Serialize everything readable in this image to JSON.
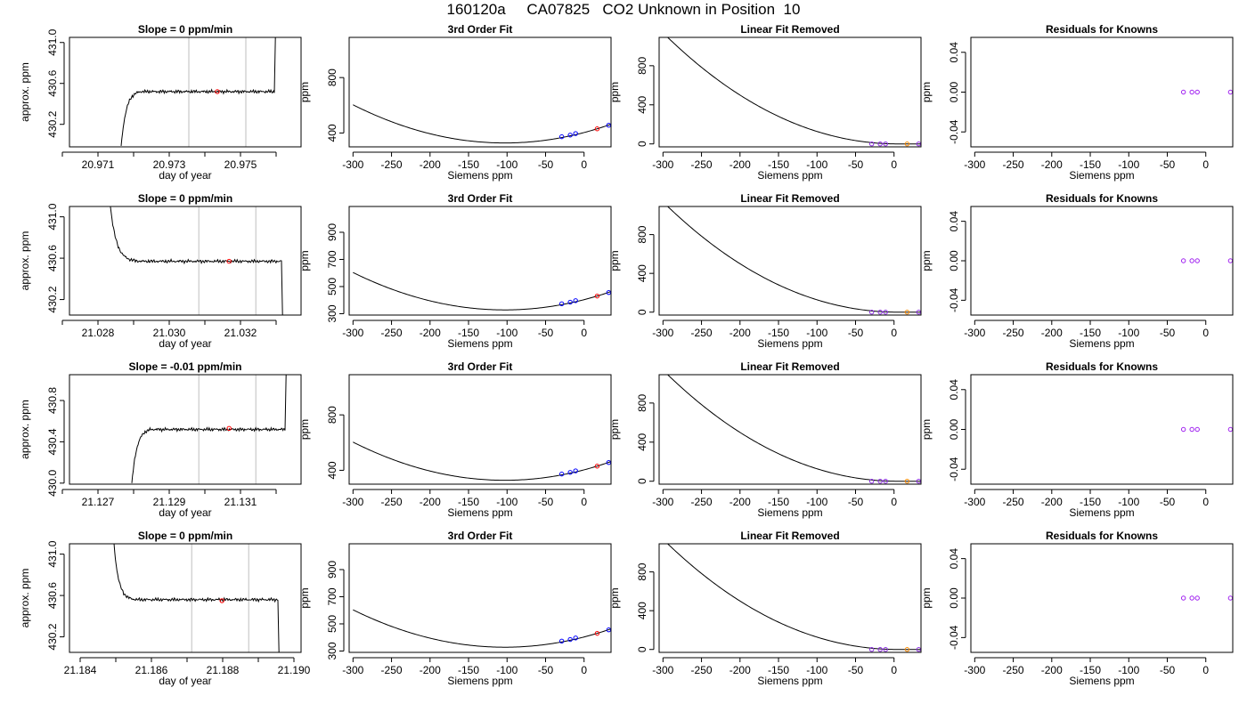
{
  "title": "160120a     CA07825   CO2 Unknown in Position  10",
  "chart_data": [
    {
      "type": "line",
      "title": "Slope =  0  ppm/min",
      "xlabel": "day of year",
      "ylabel": "approx. ppm",
      "xlim": [
        20.9702,
        20.9767
      ],
      "ylim": [
        429.98,
        431.05
      ],
      "xticks": [
        20.97,
        20.971,
        20.972,
        20.973,
        20.974,
        20.975,
        20.976
      ],
      "xtick_labels": [
        "",
        "20.971",
        "",
        "20.973",
        "",
        "20.975",
        ""
      ],
      "yticks": [
        430.2,
        430.6,
        431.0
      ],
      "ytick_labels": [
        "430.2",
        "430.6",
        "431.0"
      ],
      "vlines": [
        20.97355,
        20.97515
      ],
      "trace": {
        "x0": 20.97165,
        "x1": 20.97595,
        "start": 429.98,
        "rise_end": 20.9722,
        "plateau": 430.52,
        "jump": 20.97598,
        "end": 431.05
      },
      "highlight_point": {
        "x": 20.97435,
        "y": 430.52
      }
    },
    {
      "type": "scatter",
      "title": "3rd Order Fit",
      "xlabel": "Siemens ppm",
      "ylabel": "ppm",
      "xlim": [
        -305,
        35
      ],
      "ylim": [
        300,
        1090
      ],
      "xticks": [
        -300,
        -250,
        -200,
        -150,
        -100,
        -50,
        0
      ],
      "xtick_labels": [
        "-300",
        "-250",
        "-200",
        "-150",
        "-100",
        "-50",
        "0"
      ],
      "yticks": [
        400,
        800
      ],
      "ytick_labels": [
        "400",
        "800"
      ],
      "curve_x": [
        -300,
        35
      ],
      "knowns": [
        {
          "x": -29,
          "y": 373
        },
        {
          "x": -18,
          "y": 385
        },
        {
          "x": -11,
          "y": 396
        },
        {
          "x": 32,
          "y": 456
        }
      ],
      "unknown": {
        "x": 17,
        "y": 430
      }
    },
    {
      "type": "scatter",
      "title": "Linear Fit Removed",
      "xlabel": "Siemens ppm",
      "ylabel": "ppm",
      "xlim": [
        -305,
        35
      ],
      "ylim": [
        -30,
        1090
      ],
      "xticks": [
        -300,
        -250,
        -200,
        -150,
        -100,
        -50,
        0
      ],
      "xtick_labels": [
        "-300",
        "-250",
        "-200",
        "-150",
        "-100",
        "-50",
        "0"
      ],
      "yticks": [
        0,
        400,
        800
      ],
      "ytick_labels": [
        "0",
        "400",
        "800"
      ],
      "curve_x": [
        -300,
        35
      ],
      "knowns": [
        {
          "x": -29,
          "y": 0
        },
        {
          "x": -18,
          "y": 0
        },
        {
          "x": -11,
          "y": 0
        },
        {
          "x": 32,
          "y": 0
        }
      ],
      "unknown": {
        "x": 17,
        "y": 0
      }
    },
    {
      "type": "scatter",
      "title": "Residuals for Knowns",
      "xlabel": "Siemens ppm",
      "ylabel": "ppm",
      "xlim": [
        -305,
        35
      ],
      "ylim": [
        -0.055,
        0.055
      ],
      "xticks": [
        -300,
        -250,
        -200,
        -150,
        -100,
        -50,
        0
      ],
      "xtick_labels": [
        "-300",
        "-250",
        "-200",
        "-150",
        "-100",
        "-50",
        "0"
      ],
      "yticks": [
        -0.04,
        0.0,
        0.04
      ],
      "ytick_labels": [
        "-0.04",
        "0.00",
        "0.04"
      ],
      "knowns": [
        {
          "x": -29,
          "y": 0
        },
        {
          "x": -18,
          "y": 0
        },
        {
          "x": -11,
          "y": 0
        },
        {
          "x": 32,
          "y": 0
        }
      ]
    },
    {
      "type": "line",
      "title": "Slope =  0  ppm/min",
      "xlabel": "day of year",
      "ylabel": "approx. ppm",
      "xlim": [
        21.0272,
        21.0337
      ],
      "ylim": [
        430.05,
        431.1
      ],
      "xticks": [
        21.027,
        21.028,
        21.029,
        21.03,
        21.031,
        21.032,
        21.033
      ],
      "xtick_labels": [
        "",
        "21.028",
        "",
        "21.030",
        "",
        "21.032",
        ""
      ],
      "yticks": [
        430.2,
        430.6,
        431.0
      ],
      "ytick_labels": [
        "430.2",
        "430.6",
        "431.0"
      ],
      "vlines": [
        21.03083,
        21.03243
      ],
      "trace": {
        "x0": 21.02835,
        "x1": 21.03315,
        "start": 431.1,
        "fall_end": 21.0292,
        "plateau": 430.57,
        "drop": 21.03318,
        "end": 430.05
      },
      "highlight_point": {
        "x": 21.03168,
        "y": 430.57
      }
    },
    {
      "type": "scatter",
      "title": "3rd Order Fit",
      "xlabel": "Siemens ppm",
      "ylabel": "ppm",
      "xlim": [
        -305,
        35
      ],
      "ylim": [
        290,
        1090
      ],
      "xticks": [
        -300,
        -250,
        -200,
        -150,
        -100,
        -50,
        0
      ],
      "xtick_labels": [
        "-300",
        "-250",
        "-200",
        "-150",
        "-100",
        "-50",
        "0"
      ],
      "yticks": [
        300,
        500,
        700,
        900
      ],
      "ytick_labels": [
        "300",
        "500",
        "700",
        "900"
      ],
      "curve_x": [
        -300,
        35
      ],
      "knowns": [
        {
          "x": -29,
          "y": 373
        },
        {
          "x": -18,
          "y": 385
        },
        {
          "x": -11,
          "y": 396
        },
        {
          "x": 32,
          "y": 456
        }
      ],
      "unknown": {
        "x": 17,
        "y": 430
      }
    },
    {
      "type": "scatter",
      "title": "Linear Fit Removed",
      "xlabel": "Siemens ppm",
      "ylabel": "ppm",
      "xlim": [
        -305,
        35
      ],
      "ylim": [
        -30,
        1090
      ],
      "xticks": [
        -300,
        -250,
        -200,
        -150,
        -100,
        -50,
        0
      ],
      "xtick_labels": [
        "-300",
        "-250",
        "-200",
        "-150",
        "-100",
        "-50",
        "0"
      ],
      "yticks": [
        0,
        400,
        800
      ],
      "ytick_labels": [
        "0",
        "400",
        "800"
      ],
      "curve_x": [
        -300,
        35
      ],
      "knowns": [
        {
          "x": -29,
          "y": 0
        },
        {
          "x": -18,
          "y": 0
        },
        {
          "x": -11,
          "y": 0
        },
        {
          "x": 32,
          "y": 0
        }
      ],
      "unknown": {
        "x": 17,
        "y": 0
      }
    },
    {
      "type": "scatter",
      "title": "Residuals for Knowns",
      "xlabel": "Siemens ppm",
      "ylabel": "ppm",
      "xlim": [
        -305,
        35
      ],
      "ylim": [
        -0.055,
        0.055
      ],
      "xticks": [
        -300,
        -250,
        -200,
        -150,
        -100,
        -50,
        0
      ],
      "xtick_labels": [
        "-300",
        "-250",
        "-200",
        "-150",
        "-100",
        "-50",
        "0"
      ],
      "yticks": [
        -0.04,
        0.0,
        0.04
      ],
      "ytick_labels": [
        "-0.04",
        "0.00",
        "0.04"
      ],
      "knowns": [
        {
          "x": -29,
          "y": 0
        },
        {
          "x": -18,
          "y": 0
        },
        {
          "x": -11,
          "y": 0
        },
        {
          "x": 32,
          "y": 0
        }
      ]
    },
    {
      "type": "line",
      "title": "Slope =  -0.01  ppm/min",
      "xlabel": "day of year",
      "ylabel": "approx. ppm",
      "xlim": [
        21.1262,
        21.1327
      ],
      "ylim": [
        429.99,
        431.05
      ],
      "xticks": [
        21.126,
        21.127,
        21.128,
        21.129,
        21.13,
        21.131,
        21.132
      ],
      "xtick_labels": [
        "",
        "21.127",
        "",
        "21.129",
        "",
        "21.131",
        ""
      ],
      "yticks": [
        430.0,
        430.4,
        430.8
      ],
      "ytick_labels": [
        "430.0",
        "430.4",
        "430.8"
      ],
      "vlines": [
        21.12983,
        21.13143
      ],
      "trace": {
        "x0": 21.12795,
        "x1": 21.13225,
        "start": 429.99,
        "rise_end": 21.1285,
        "plateau": 430.52,
        "jump": 21.13228,
        "end": 431.05
      },
      "highlight_point": {
        "x": 21.13068,
        "y": 430.53
      }
    },
    {
      "type": "scatter",
      "title": "3rd Order Fit",
      "xlabel": "Siemens ppm",
      "ylabel": "ppm",
      "xlim": [
        -305,
        35
      ],
      "ylim": [
        300,
        1090
      ],
      "xticks": [
        -300,
        -250,
        -200,
        -150,
        -100,
        -50,
        0
      ],
      "xtick_labels": [
        "-300",
        "-250",
        "-200",
        "-150",
        "-100",
        "-50",
        "0"
      ],
      "yticks": [
        400,
        800
      ],
      "ytick_labels": [
        "400",
        "800"
      ],
      "curve_x": [
        -300,
        35
      ],
      "knowns": [
        {
          "x": -29,
          "y": 373
        },
        {
          "x": -18,
          "y": 385
        },
        {
          "x": -11,
          "y": 396
        },
        {
          "x": 32,
          "y": 456
        }
      ],
      "unknown": {
        "x": 17,
        "y": 430
      }
    },
    {
      "type": "scatter",
      "title": "Linear Fit Removed",
      "xlabel": "Siemens ppm",
      "ylabel": "ppm",
      "xlim": [
        -305,
        35
      ],
      "ylim": [
        -30,
        1090
      ],
      "xticks": [
        -300,
        -250,
        -200,
        -150,
        -100,
        -50,
        0
      ],
      "xtick_labels": [
        "-300",
        "-250",
        "-200",
        "-150",
        "-100",
        "-50",
        "0"
      ],
      "yticks": [
        0,
        400,
        800
      ],
      "ytick_labels": [
        "0",
        "400",
        "800"
      ],
      "curve_x": [
        -300,
        35
      ],
      "knowns": [
        {
          "x": -29,
          "y": 0
        },
        {
          "x": -18,
          "y": 0
        },
        {
          "x": -11,
          "y": 0
        },
        {
          "x": 32,
          "y": 0
        }
      ],
      "unknown": {
        "x": 17,
        "y": 0
      }
    },
    {
      "type": "scatter",
      "title": "Residuals for Knowns",
      "xlabel": "Siemens ppm",
      "ylabel": "ppm",
      "xlim": [
        -305,
        35
      ],
      "ylim": [
        -0.055,
        0.055
      ],
      "xticks": [
        -300,
        -250,
        -200,
        -150,
        -100,
        -50,
        0
      ],
      "xtick_labels": [
        "-300",
        "-250",
        "-200",
        "-150",
        "-100",
        "-50",
        "0"
      ],
      "yticks": [
        -0.04,
        0.0,
        0.04
      ],
      "ytick_labels": [
        "-0.04",
        "0.00",
        "0.04"
      ],
      "knowns": [
        {
          "x": -29,
          "y": 0
        },
        {
          "x": -18,
          "y": 0
        },
        {
          "x": -11,
          "y": 0
        },
        {
          "x": 32,
          "y": 0
        }
      ]
    },
    {
      "type": "line",
      "title": "Slope =  0  ppm/min",
      "xlabel": "day of year",
      "ylabel": "approx. ppm",
      "xlim": [
        21.1837,
        21.1902
      ],
      "ylim": [
        430.05,
        431.1
      ],
      "xticks": [
        21.184,
        21.185,
        21.186,
        21.187,
        21.188,
        21.189,
        21.19
      ],
      "xtick_labels": [
        "21.184",
        "",
        "21.186",
        "",
        "21.188",
        "",
        "21.190"
      ],
      "yticks": [
        430.2,
        430.6,
        431.0
      ],
      "ytick_labels": [
        "430.2",
        "430.6",
        "431.0"
      ],
      "vlines": [
        21.18713,
        21.18873
      ],
      "trace": {
        "x0": 21.18495,
        "x1": 21.18955,
        "start": 431.1,
        "fall_end": 21.1856,
        "plateau": 430.56,
        "drop": 21.18958,
        "end": 430.05
      },
      "highlight_point": {
        "x": 21.18798,
        "y": 430.55
      }
    },
    {
      "type": "scatter",
      "title": "3rd Order Fit",
      "xlabel": "Siemens ppm",
      "ylabel": "ppm",
      "xlim": [
        -305,
        35
      ],
      "ylim": [
        290,
        1090
      ],
      "xticks": [
        -300,
        -250,
        -200,
        -150,
        -100,
        -50,
        0
      ],
      "xtick_labels": [
        "-300",
        "-250",
        "-200",
        "-150",
        "-100",
        "-50",
        "0"
      ],
      "yticks": [
        300,
        500,
        700,
        900
      ],
      "ytick_labels": [
        "300",
        "500",
        "700",
        "900"
      ],
      "curve_x": [
        -300,
        35
      ],
      "knowns": [
        {
          "x": -29,
          "y": 373
        },
        {
          "x": -18,
          "y": 385
        },
        {
          "x": -11,
          "y": 396
        },
        {
          "x": 32,
          "y": 456
        }
      ],
      "unknown": {
        "x": 17,
        "y": 430
      }
    },
    {
      "type": "scatter",
      "title": "Linear Fit Removed",
      "xlabel": "Siemens ppm",
      "ylabel": "ppm",
      "xlim": [
        -305,
        35
      ],
      "ylim": [
        -30,
        1090
      ],
      "xticks": [
        -300,
        -250,
        -200,
        -150,
        -100,
        -50,
        0
      ],
      "xtick_labels": [
        "-300",
        "-250",
        "-200",
        "-150",
        "-100",
        "-50",
        "0"
      ],
      "yticks": [
        0,
        400,
        800
      ],
      "ytick_labels": [
        "0",
        "400",
        "800"
      ],
      "curve_x": [
        -300,
        35
      ],
      "knowns": [
        {
          "x": -29,
          "y": 0
        },
        {
          "x": -18,
          "y": 0
        },
        {
          "x": -11,
          "y": 0
        },
        {
          "x": 32,
          "y": 0
        }
      ],
      "unknown": {
        "x": 17,
        "y": 0
      }
    },
    {
      "type": "scatter",
      "title": "Residuals for Knowns",
      "xlabel": "Siemens ppm",
      "ylabel": "ppm",
      "xlim": [
        -305,
        35
      ],
      "ylim": [
        -0.055,
        0.055
      ],
      "xticks": [
        -300,
        -250,
        -200,
        -150,
        -100,
        -50,
        0
      ],
      "xtick_labels": [
        "-300",
        "-250",
        "-200",
        "-150",
        "-100",
        "-50",
        "0"
      ],
      "yticks": [
        -0.04,
        0.0,
        0.04
      ],
      "ytick_labels": [
        "-0.04",
        "0.00",
        "0.04"
      ],
      "knowns": [
        {
          "x": -29,
          "y": 0
        },
        {
          "x": -18,
          "y": 0
        },
        {
          "x": -11,
          "y": 0
        },
        {
          "x": 32,
          "y": 0
        }
      ]
    }
  ],
  "colors": {
    "axis": "#000000",
    "trace": "#000000",
    "vline": "#bebebe",
    "highlight": "#ff0000",
    "known_fit": "#0000ff",
    "unknown_fit": "#ff0000",
    "known_removed": "#8a2be2",
    "unknown_removed": "#ff8c00",
    "residual": "#a020f0"
  }
}
